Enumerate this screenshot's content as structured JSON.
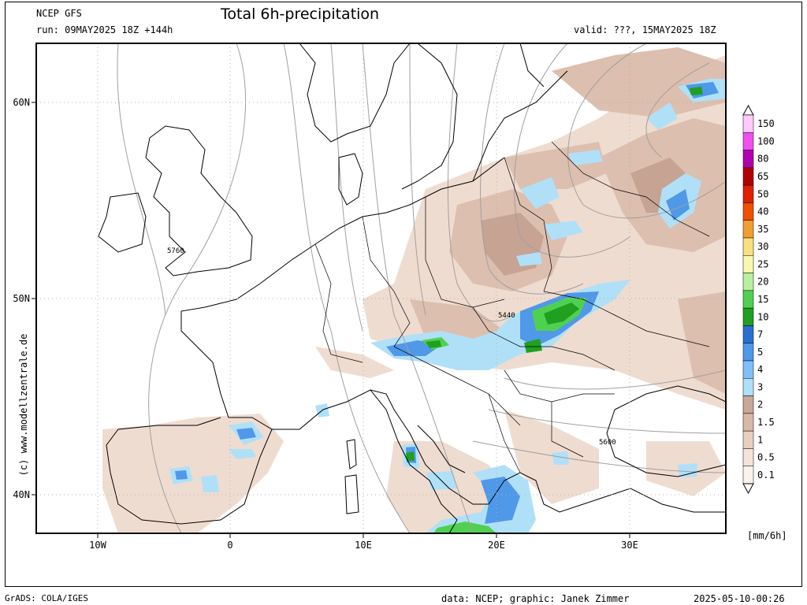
{
  "header": {
    "model": "NCEP GFS",
    "run": "run: 09MAY2025 18Z +144h",
    "title": "Total 6h-precipitation",
    "valid": "valid: ???, 15MAY2025 18Z"
  },
  "map": {
    "region": "Europe",
    "lat_ticks": [
      "60N",
      "50N",
      "40N"
    ],
    "lon_ticks": [
      "10W",
      "0",
      "10E",
      "20E",
      "30E"
    ],
    "contour_labels": [
      "5760",
      "5440",
      "5600"
    ],
    "background": "#ffffff",
    "outline_color": "#000000",
    "contour_color": "#a0a0a0"
  },
  "legend": {
    "unit": "[mm/6h]",
    "levels": [
      "150",
      "100",
      "80",
      "65",
      "50",
      "40",
      "35",
      "30",
      "25",
      "20",
      "15",
      "10",
      "7",
      "5",
      "4",
      "3",
      "2",
      "1.5",
      "1",
      "0.5",
      "0.1"
    ],
    "colors": [
      "#ffc8ff",
      "#f050f0",
      "#b000b0",
      "#b00000",
      "#e02000",
      "#f05000",
      "#f0a030",
      "#f8e080",
      "#f8f8b0",
      "#b8f0a0",
      "#50d050",
      "#20a020",
      "#2870d0",
      "#5098e8",
      "#80c0f8",
      "#b0e0f8",
      "#c8a898",
      "#d8b8a8",
      "#e8d0c0",
      "#f4e4d8",
      "#fbf2ec"
    ]
  },
  "footer": {
    "software": "GrADS: COLA/IGES",
    "credit": "data: NCEP; graphic: Janek Zimmer",
    "timestamp": "2025-05-10-00:26",
    "copyright": "(c) www.modellzentrale.de"
  }
}
